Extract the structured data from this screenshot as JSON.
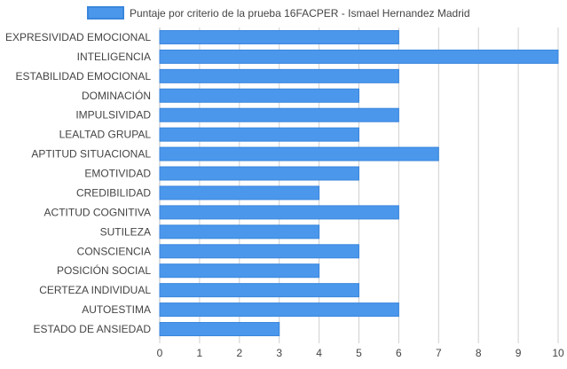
{
  "colors": {
    "bar_fill": "#4a97ec",
    "bar_stroke": "#3a86dc",
    "grid": "#cfcfcf",
    "text": "#444444"
  },
  "chart_data": {
    "type": "bar",
    "orientation": "horizontal",
    "legend": {
      "position": "top-center"
    },
    "grid": true,
    "xlim": [
      0,
      10
    ],
    "x_ticks": [
      "0",
      "1",
      "2",
      "3",
      "4",
      "5",
      "6",
      "7",
      "8",
      "9",
      "10"
    ],
    "categories": [
      "EXPRESIVIDAD EMOCIONAL",
      "INTELIGENCIA",
      "ESTABILIDAD EMOCIONAL",
      "DOMINACIÓN",
      "IMPULSIVIDAD",
      "LEALTAD GRUPAL",
      "APTITUD SITUACIONAL",
      "EMOTIVIDAD",
      "CREDIBILIDAD",
      "ACTITUD COGNITIVA",
      "SUTILEZA",
      "CONSCIENCIA",
      "POSICIÓN SOCIAL",
      "CERTEZA INDIVIDUAL",
      "AUTOESTIMA",
      "ESTADO DE ANSIEDAD"
    ],
    "series": [
      {
        "name": "Puntaje por criterio de la prueba 16FACPER - Ismael Hernandez Madrid",
        "values": [
          6,
          10,
          6,
          5,
          6,
          5,
          7,
          5,
          4,
          6,
          4,
          5,
          4,
          5,
          6,
          3
        ]
      }
    ]
  }
}
